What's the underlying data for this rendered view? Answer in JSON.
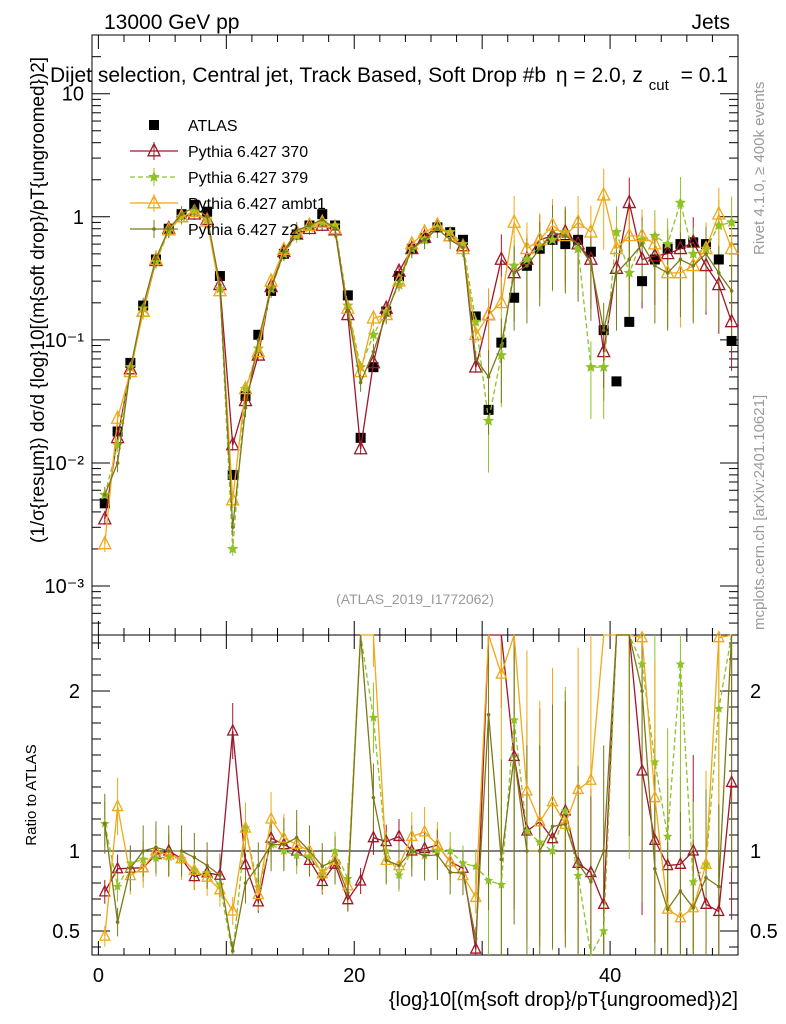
{
  "chart_data": {
    "type": "line",
    "header_left": "13000 GeV pp",
    "header_right": "Jets",
    "title": "Dijet selection, Central jet, Track Based, Soft Drop #b",
    "title_params": "η = 2.0, z",
    "title_sub": "cut",
    "title_tail": "= 0.1",
    "ylabel": "(1/σ{resum}) dσ/d {log}10[(m{soft drop}/pT{ungroomed})2]",
    "xlabel": "{log}10[(m{soft drop}/pT{ungroomed})2]",
    "ratio_ylabel": "Ratio to ATLAS",
    "analysis_id": "(ATLAS_2019_I1772062)",
    "side_text_top": "Rivet 4.1.0, ≥ 400k events",
    "side_text_bottom": "mcplots.cern.ch [arXiv:2401.10621]",
    "xlim": [
      -0.5,
      50
    ],
    "ylim": [
      0.0004,
      30
    ],
    "ratio_ylim": [
      0.35,
      2.35
    ],
    "xticks": [
      0,
      20,
      40
    ],
    "yticks_main": [
      {
        "value": 10,
        "label": "10"
      },
      {
        "value": 1,
        "label": "1"
      },
      {
        "value": 0.1,
        "label": "10⁻¹"
      },
      {
        "value": 0.01,
        "label": "10⁻²"
      },
      {
        "value": 0.001,
        "label": "10⁻³"
      }
    ],
    "yticks_ratio": [
      {
        "value": 2,
        "label": "2"
      },
      {
        "value": 1,
        "label": "1"
      },
      {
        "value": 0.5,
        "label": "0.5"
      }
    ],
    "x": [
      0.5,
      1.5,
      2.5,
      3.5,
      4.5,
      5.5,
      6.5,
      7.5,
      8.5,
      9.5,
      10.5,
      11.5,
      12.5,
      13.5,
      14.5,
      15.5,
      16.5,
      17.5,
      18.5,
      19.5,
      20.5,
      21.5,
      22.5,
      23.5,
      24.5,
      25.5,
      26.5,
      27.5,
      28.5,
      29.5,
      30.5,
      31.5,
      32.5,
      33.5,
      34.5,
      35.5,
      36.5,
      37.5,
      38.5,
      39.5,
      40.5,
      41.5,
      42.5,
      43.5,
      44.5,
      45.5,
      46.5,
      47.5,
      48.5,
      49.5
    ],
    "series": [
      {
        "name": "ATLAS",
        "color": "#000000",
        "marker": "square",
        "values": [
          0.0047,
          0.018,
          0.065,
          0.19,
          0.45,
          0.8,
          1.05,
          1.25,
          1.1,
          0.33,
          0.008,
          0.035,
          0.11,
          0.25,
          0.5,
          0.72,
          0.85,
          1.05,
          0.85,
          0.23,
          0.016,
          0.06,
          0.17,
          0.33,
          0.55,
          0.67,
          0.82,
          0.75,
          0.65,
          0.155,
          0.027,
          0.095,
          0.22,
          0.4,
          0.55,
          0.65,
          0.6,
          0.65,
          0.52,
          0.12,
          0.046,
          0.14,
          0.3,
          0.45,
          0.55,
          0.6,
          0.62,
          0.6,
          0.45,
          0.098
        ]
      },
      {
        "name": "Pythia 6.427 370",
        "color": "#a0162a",
        "marker": "triangle-open",
        "values": [
          0.0035,
          0.016,
          0.058,
          0.17,
          0.44,
          0.8,
          1.0,
          1.05,
          0.95,
          0.28,
          0.014,
          0.032,
          0.075,
          0.27,
          0.52,
          0.72,
          0.8,
          0.85,
          0.78,
          0.16,
          0.013,
          0.065,
          0.18,
          0.36,
          0.55,
          0.68,
          0.85,
          0.7,
          0.58,
          0.06,
          0.16,
          0.45,
          0.35,
          0.45,
          0.65,
          0.7,
          0.75,
          0.6,
          0.45,
          0.08,
          0.38,
          1.3,
          0.45,
          0.48,
          0.5,
          0.55,
          0.62,
          0.4,
          0.28,
          0.14
        ]
      },
      {
        "name": "Pythia 6.427 379",
        "color": "#8fc227",
        "marker": "star",
        "dashed": true,
        "values": [
          0.0055,
          0.014,
          0.06,
          0.18,
          0.43,
          0.77,
          1.0,
          1.1,
          0.95,
          0.26,
          0.002,
          0.04,
          0.085,
          0.26,
          0.5,
          0.7,
          0.82,
          0.9,
          0.85,
          0.19,
          0.06,
          0.11,
          0.17,
          0.28,
          0.55,
          0.65,
          0.82,
          0.75,
          0.6,
          0.14,
          0.022,
          0.075,
          0.4,
          0.45,
          0.58,
          0.65,
          0.75,
          0.55,
          0.06,
          0.06,
          0.75,
          0.35,
          0.65,
          0.7,
          0.6,
          1.3,
          0.5,
          0.55,
          0.85,
          0.9
        ]
      },
      {
        "name": "Pythia 6.427 ambt1",
        "color": "#f0a815",
        "marker": "triangle-open",
        "values": [
          0.0022,
          0.023,
          0.055,
          0.17,
          0.45,
          0.78,
          1.0,
          1.1,
          0.92,
          0.25,
          0.005,
          0.04,
          0.08,
          0.3,
          0.54,
          0.75,
          0.85,
          0.9,
          0.8,
          0.18,
          0.055,
          0.15,
          0.16,
          0.3,
          0.6,
          0.75,
          0.85,
          0.7,
          0.55,
          0.11,
          0.16,
          0.2,
          0.9,
          0.55,
          0.65,
          0.85,
          0.7,
          0.9,
          0.75,
          1.5,
          0.55,
          0.7,
          0.7,
          0.6,
          0.35,
          0.35,
          0.4,
          0.55,
          1.05,
          0.55
        ]
      },
      {
        "name": "Pythia 6.427 z2",
        "color": "#7a7a1a",
        "marker": "dot",
        "values": [
          0.0055,
          0.01,
          0.058,
          0.19,
          0.46,
          0.8,
          1.05,
          1.2,
          1.0,
          0.28,
          0.003,
          0.028,
          0.1,
          0.26,
          0.52,
          0.78,
          0.85,
          0.95,
          0.8,
          0.17,
          0.045,
          0.08,
          0.16,
          0.3,
          0.55,
          0.65,
          0.8,
          0.65,
          0.56,
          0.07,
          0.05,
          0.09,
          0.35,
          0.4,
          0.55,
          0.75,
          0.7,
          0.6,
          0.42,
          0.12,
          0.35,
          0.45,
          0.6,
          0.4,
          0.35,
          0.45,
          0.4,
          0.5,
          0.35,
          0.25
        ]
      }
    ]
  }
}
